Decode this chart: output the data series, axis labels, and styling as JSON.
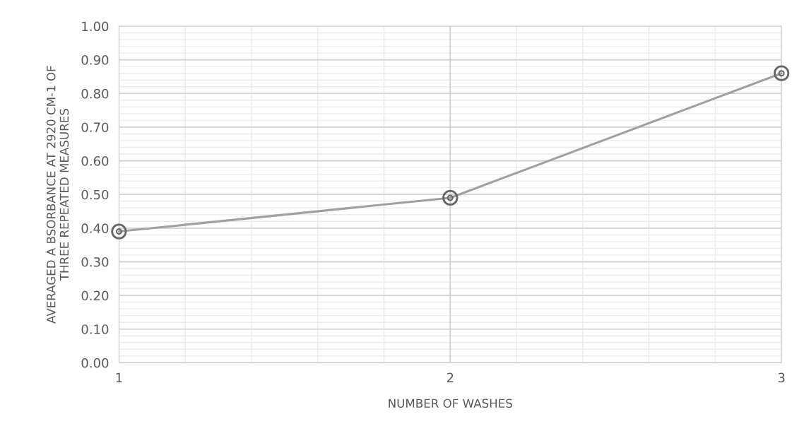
{
  "chart_data": {
    "type": "line",
    "xlabel": "NUMBER OF WASHES",
    "ylabel": "AVERAGED A BSORBANCE AT 2920 CM-1 OF\nTHREE REPEATED MEASURES",
    "x": [
      1,
      2,
      3
    ],
    "series": [
      {
        "color": "#a0a0a0",
        "values": [
          0.39,
          0.49,
          0.86
        ]
      }
    ],
    "xlim": [
      1,
      3
    ],
    "xticks": [
      1,
      2,
      3
    ],
    "ylim": [
      0,
      1
    ],
    "yticks": [
      {
        "value": 0,
        "label": "0.00"
      },
      {
        "value": 0.1,
        "label": "0.10"
      },
      {
        "value": 0.2,
        "label": "0.20"
      },
      {
        "value": 0.3,
        "label": "0.30"
      },
      {
        "value": 0.4,
        "label": "0.40"
      },
      {
        "value": 0.5,
        "label": "0.50"
      },
      {
        "value": 0.6,
        "label": "0.60"
      },
      {
        "value": 0.7,
        "label": "0.70"
      },
      {
        "value": 0.8,
        "label": "0.80"
      },
      {
        "value": 0.9,
        "label": "0.90"
      },
      {
        "value": 1,
        "label": "1.00"
      }
    ],
    "grid": true,
    "marker": "circle",
    "line_style": "solid",
    "legend": false
  }
}
